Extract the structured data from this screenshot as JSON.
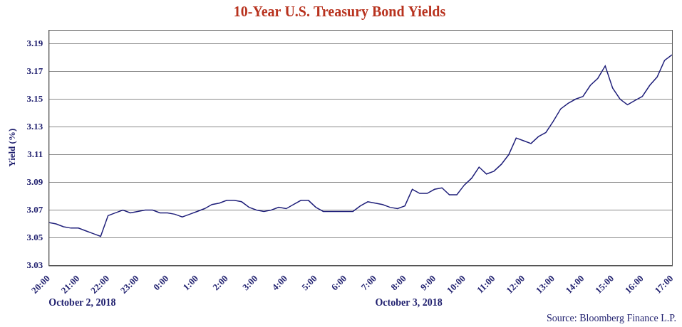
{
  "chart_data": {
    "type": "line",
    "title": "10-Year U.S. Treasury Bond Yields",
    "y_label": "Yield (%)",
    "categories": [
      "20:00",
      null,
      null,
      null,
      "21:00",
      null,
      null,
      null,
      "22:00",
      null,
      null,
      null,
      "23:00",
      null,
      null,
      null,
      "0:00",
      null,
      null,
      null,
      "1:00",
      null,
      null,
      null,
      "2:00",
      null,
      null,
      null,
      "3:00",
      null,
      null,
      null,
      "4:00",
      null,
      null,
      null,
      "5:00",
      null,
      null,
      null,
      "6:00",
      null,
      null,
      null,
      "7:00",
      null,
      null,
      null,
      "8:00",
      null,
      null,
      null,
      "9:00",
      null,
      null,
      null,
      "10:00",
      null,
      null,
      null,
      "11:00",
      null,
      null,
      null,
      "12:00",
      null,
      null,
      null,
      "13:00",
      null,
      null,
      null,
      "14:00",
      null,
      null,
      null,
      "15:00",
      null,
      null,
      null,
      "16:00",
      null,
      null,
      null,
      "17:00"
    ],
    "values": [
      3.061,
      3.06,
      3.058,
      3.057,
      3.057,
      3.055,
      3.053,
      3.051,
      3.066,
      3.068,
      3.07,
      3.068,
      3.069,
      3.07,
      3.07,
      3.068,
      3.068,
      3.067,
      3.065,
      3.067,
      3.069,
      3.071,
      3.074,
      3.075,
      3.077,
      3.077,
      3.076,
      3.072,
      3.07,
      3.069,
      3.07,
      3.072,
      3.071,
      3.074,
      3.077,
      3.077,
      3.072,
      3.069,
      3.069,
      3.069,
      3.069,
      3.069,
      3.073,
      3.076,
      3.075,
      3.074,
      3.072,
      3.071,
      3.073,
      3.085,
      3.082,
      3.082,
      3.085,
      3.086,
      3.081,
      3.081,
      3.088,
      3.093,
      3.101,
      3.096,
      3.098,
      3.103,
      3.11,
      3.122,
      3.12,
      3.118,
      3.123,
      3.126,
      3.134,
      3.143,
      3.147,
      3.15,
      3.152,
      3.16,
      3.165,
      3.174,
      3.158,
      3.15,
      3.146,
      3.149,
      3.152,
      3.16,
      3.166,
      3.178,
      3.182
    ],
    "color": "#1f1f7a",
    "marker": "none",
    "ylim": [
      3.03,
      3.2
    ],
    "yticks": [
      3.03,
      3.05,
      3.07,
      3.09,
      3.11,
      3.13,
      3.15,
      3.17,
      3.19
    ],
    "grid": true,
    "annotations": [
      "October 2, 2018",
      "October 3, 2018"
    ],
    "source": "Source: Bloomberg Finance L.P."
  }
}
